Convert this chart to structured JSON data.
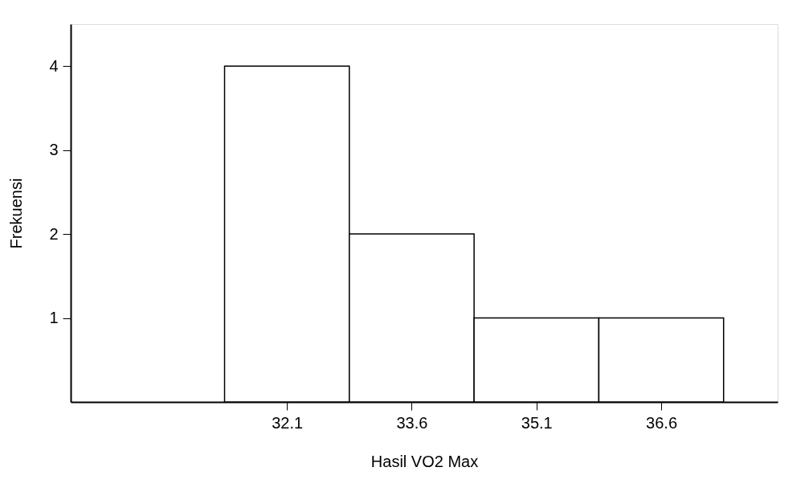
{
  "chart_data": {
    "type": "histogram",
    "xlabel": "Hasil VO2 Max",
    "ylabel": "Frekuensi",
    "bins": [
      31.35,
      32.85,
      34.35,
      35.85,
      37.35
    ],
    "values": [
      4,
      2,
      1,
      1
    ],
    "color": "#ffffff",
    "xlim": [
      29.5,
      38
    ],
    "xticks": [
      32.1,
      33.6,
      35.1,
      36.6
    ],
    "ylim": [
      0,
      4.5
    ],
    "yticks": [
      1,
      2,
      3,
      4
    ],
    "grid": false
  }
}
